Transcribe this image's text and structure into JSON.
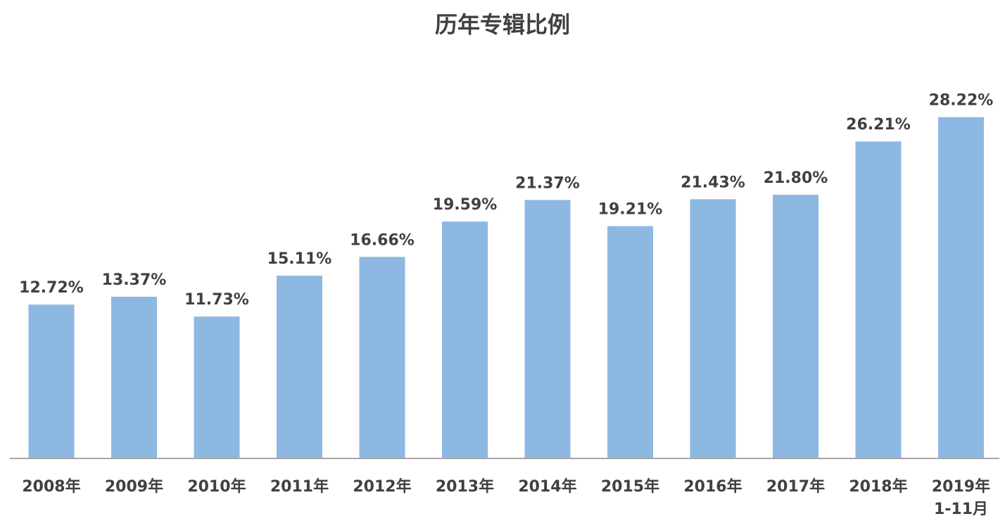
{
  "chart_data": {
    "type": "bar",
    "title": "历年专辑比例",
    "categories": [
      "2008年",
      "2009年",
      "2010年",
      "2011年",
      "2012年",
      "2013年",
      "2014年",
      "2015年",
      "2016年",
      "2017年",
      "2018年",
      "2019年\n1-11月"
    ],
    "values": [
      12.72,
      13.37,
      11.73,
      15.11,
      16.66,
      19.59,
      21.37,
      19.21,
      21.43,
      21.8,
      26.21,
      28.22
    ],
    "value_labels": [
      "12.72%",
      "13.37%",
      "11.73%",
      "15.11%",
      "16.66%",
      "19.59%",
      "21.37%",
      "19.21%",
      "21.43%",
      "21.80%",
      "26.21%",
      "28.22%"
    ],
    "xlabel": "",
    "ylabel": "",
    "ylim": [
      0,
      30
    ],
    "grid": false,
    "legend": "none",
    "colors": {
      "bar": "#8db8e2",
      "axis": "#a6a6a6",
      "text": "#404040"
    }
  }
}
